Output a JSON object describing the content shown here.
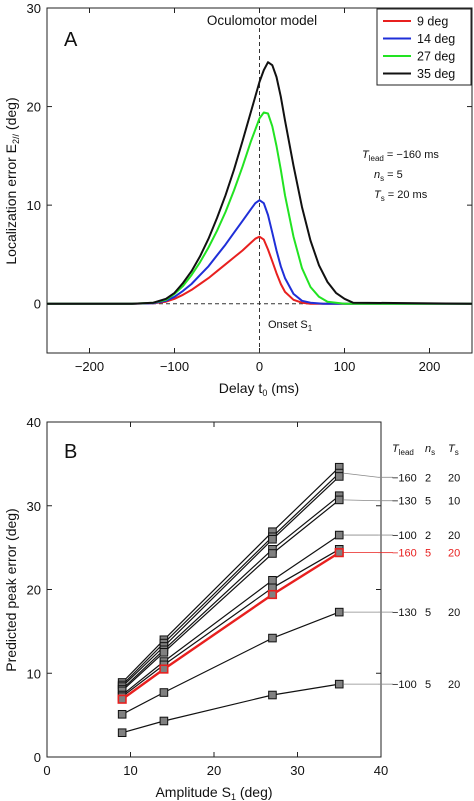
{
  "chart_data": [
    {
      "type": "line",
      "panel": "A",
      "title": "Oculomotor model",
      "xlabel_main": "Delay t",
      "xlabel_sub": "0",
      "xlabel_unit": " (ms)",
      "ylabel_main": "Localization error E",
      "ylabel_sub": "2//",
      "ylabel_unit": " (deg)",
      "xlim": [
        -250,
        250
      ],
      "ylim": [
        -5,
        30
      ],
      "xticks": [
        -200,
        -100,
        0,
        100,
        200
      ],
      "yticks": [
        0,
        10,
        20,
        30
      ],
      "onset_label": "Onset S",
      "onset_sub": "1",
      "params": [
        {
          "main": "T",
          "sub": "lead",
          "rest": " = −160 ms"
        },
        {
          "main": "n",
          "sub": "s",
          "rest": " = 5"
        },
        {
          "main": "T",
          "sub": "s",
          "rest": " = 20 ms"
        }
      ],
      "legend_position": "top-right",
      "series": [
        {
          "name": "9 deg",
          "color": "#e8201f",
          "x": [
            -250,
            -150,
            -125,
            -110,
            -100,
            -90,
            -80,
            -70,
            -60,
            -50,
            -40,
            -30,
            -20,
            -10,
            -5,
            0,
            5,
            10,
            15,
            20,
            25,
            30,
            40,
            50,
            60,
            75,
            100,
            250
          ],
          "y": [
            0,
            0,
            0.05,
            0.2,
            0.5,
            0.9,
            1.4,
            2.0,
            2.6,
            3.3,
            4.0,
            4.7,
            5.4,
            6.2,
            6.6,
            6.8,
            6.5,
            5.5,
            4.3,
            3.1,
            2.0,
            1.2,
            0.4,
            0.1,
            0,
            0,
            0,
            0
          ]
        },
        {
          "name": "14 deg",
          "color": "#1f2fd8",
          "x": [
            -250,
            -150,
            -125,
            -110,
            -100,
            -90,
            -80,
            -70,
            -60,
            -50,
            -40,
            -30,
            -20,
            -10,
            -5,
            0,
            5,
            10,
            15,
            20,
            25,
            30,
            40,
            50,
            60,
            75,
            100,
            250
          ],
          "y": [
            0,
            0,
            0.05,
            0.3,
            0.7,
            1.3,
            2.0,
            2.9,
            3.8,
            4.9,
            6.0,
            7.2,
            8.4,
            9.6,
            10.2,
            10.5,
            10.2,
            9.0,
            7.2,
            5.4,
            3.8,
            2.6,
            1.0,
            0.3,
            0.1,
            0,
            0,
            0
          ]
        },
        {
          "name": "27 deg",
          "color": "#22e322",
          "x": [
            -250,
            -150,
            -125,
            -110,
            -100,
            -90,
            -80,
            -70,
            -60,
            -50,
            -40,
            -30,
            -20,
            -10,
            0,
            5,
            10,
            15,
            20,
            25,
            30,
            40,
            50,
            60,
            70,
            80,
            100,
            250
          ],
          "y": [
            0,
            0,
            0.1,
            0.4,
            1.0,
            1.8,
            2.9,
            4.2,
            5.7,
            7.4,
            9.3,
            11.5,
            13.9,
            16.5,
            18.8,
            19.4,
            19.3,
            18.0,
            16.0,
            13.6,
            11.0,
            6.8,
            3.6,
            1.7,
            0.7,
            0.2,
            0,
            0
          ]
        },
        {
          "name": "35 deg",
          "color": "#111111",
          "x": [
            -250,
            -150,
            -125,
            -110,
            -100,
            -90,
            -80,
            -70,
            -60,
            -50,
            -40,
            -30,
            -20,
            -10,
            0,
            5,
            10,
            15,
            20,
            25,
            30,
            40,
            50,
            60,
            70,
            80,
            90,
            100,
            110,
            250
          ],
          "y": [
            0,
            0,
            0.1,
            0.5,
            1.1,
            2.1,
            3.3,
            4.8,
            6.6,
            8.7,
            11.0,
            13.6,
            16.5,
            19.5,
            22.5,
            23.7,
            24.5,
            24.2,
            23.0,
            21.0,
            18.6,
            14.0,
            9.8,
            6.4,
            3.9,
            2.2,
            1.1,
            0.5,
            0.1,
            0
          ]
        }
      ]
    },
    {
      "type": "line",
      "panel": "B",
      "xlabel_main": "Amplitude S",
      "xlabel_sub": "1",
      "xlabel_unit": " (deg)",
      "ylabel": "Predicted peak error (deg)",
      "xlim": [
        0,
        40
      ],
      "ylim": [
        0,
        40
      ],
      "xticks": [
        0,
        10,
        20,
        30,
        40
      ],
      "yticks": [
        0,
        10,
        20,
        30,
        40
      ],
      "x": [
        9,
        14,
        27,
        35
      ],
      "table_header": [
        {
          "main": "T",
          "sub": "lead"
        },
        {
          "main": "n",
          "sub": "s"
        },
        {
          "main": "T",
          "sub": "s"
        }
      ],
      "series": [
        {
          "color": "#111111",
          "values": [
            8.9,
            14.0,
            26.9,
            34.6
          ],
          "label": null
        },
        {
          "color": "#111111",
          "values": [
            8.6,
            13.6,
            26.3,
            33.9
          ],
          "label": [
            "−160",
            "2",
            "20"
          ],
          "label_y": 33.4
        },
        {
          "color": "#111111",
          "values": [
            8.4,
            13.2,
            26.0,
            33.5
          ],
          "label": null
        },
        {
          "color": "#111111",
          "values": [
            8.1,
            12.8,
            24.8,
            31.2
          ],
          "label": null
        },
        {
          "color": "#111111",
          "values": [
            7.9,
            12.5,
            24.3,
            30.7
          ],
          "label": [
            "−130",
            "5",
            "10"
          ],
          "label_y": 30.6
        },
        {
          "color": "#111111",
          "values": [
            7.4,
            11.4,
            21.1,
            26.5
          ],
          "label": [
            "−100",
            "2",
            "20"
          ],
          "label_y": 26.5
        },
        {
          "color": "#e8201f",
          "values": [
            6.9,
            10.5,
            19.4,
            24.4
          ],
          "label": [
            "−160",
            "5",
            "20"
          ],
          "label_y": 24.4
        },
        {
          "color": "#111111",
          "values": [
            7.2,
            11.0,
            20.2,
            24.8
          ],
          "label": null
        },
        {
          "color": "#111111",
          "values": [
            5.1,
            7.7,
            14.2,
            17.3
          ],
          "label": [
            "−130",
            "5",
            "20"
          ],
          "label_y": 17.3
        },
        {
          "color": "#111111",
          "values": [
            2.9,
            4.3,
            7.4,
            8.7
          ],
          "label": [
            "−100",
            "5",
            "20"
          ],
          "label_y": 8.7
        }
      ]
    }
  ]
}
